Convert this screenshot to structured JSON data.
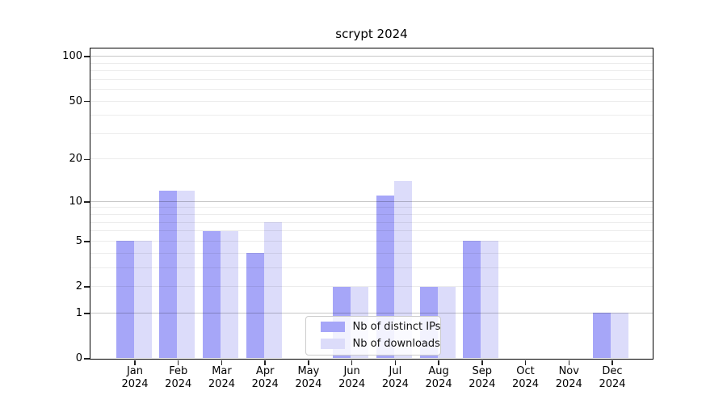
{
  "title": "scrypt 2024",
  "chart_data": {
    "type": "bar",
    "title": "scrypt 2024",
    "categories": [
      "Jan 2024",
      "Feb 2024",
      "Mar 2024",
      "Apr 2024",
      "May 2024",
      "Jun 2024",
      "Jul 2024",
      "Aug 2024",
      "Sep 2024",
      "Oct 2024",
      "Nov 2024",
      "Dec 2024"
    ],
    "series": [
      {
        "name": "Nb of distinct IPs",
        "color": "#a6a6f8",
        "values": [
          5,
          12,
          6,
          4,
          0,
          2,
          11,
          2,
          5,
          0,
          0,
          1
        ]
      },
      {
        "name": "Nb of downloads",
        "color": "#dcdcfa",
        "values": [
          5,
          12,
          6,
          7,
          0,
          2,
          14,
          2,
          5,
          0,
          0,
          1
        ]
      }
    ],
    "xlabel": "",
    "ylabel": "",
    "y_axis": {
      "scale": "log1p",
      "tick_values": [
        0,
        1,
        2,
        5,
        10,
        20,
        50,
        100
      ],
      "tick_labels": [
        "0",
        "1",
        "2",
        "5",
        "10",
        "20",
        "50",
        "100"
      ],
      "ylim": [
        0,
        113
      ],
      "major_grid_values": [
        1,
        10,
        100
      ],
      "minor_grid_values": [
        2,
        3,
        4,
        5,
        6,
        7,
        8,
        9,
        20,
        30,
        40,
        50,
        60,
        70,
        80,
        90
      ]
    },
    "grid": "on",
    "legend": {
      "position": "bottom-center-inside",
      "entries": [
        "Nb of distinct IPs",
        "Nb of downloads"
      ]
    },
    "colors": {
      "dark_bar": "#a6a6f8",
      "light_bar": "#dcdcfa",
      "major_grid": "rgba(0,0,0,0.22)",
      "minor_grid": "rgba(0,0,0,0.075)",
      "spine": "#000000"
    }
  }
}
